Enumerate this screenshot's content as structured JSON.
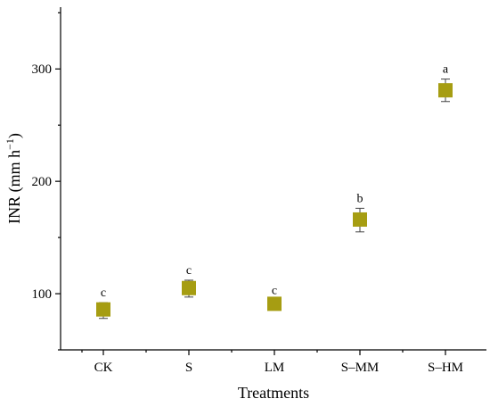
{
  "chart_data": {
    "type": "scatter",
    "xlabel": "Treatments",
    "ylabel_main": "INR (mm h",
    "ylabel_sup": "−1",
    "ylabel_close": ")",
    "ylim": [
      50,
      355
    ],
    "yticks": [
      100,
      200,
      300
    ],
    "grid": false,
    "legend": "none",
    "marker_color": "#a69d12",
    "marker_shape": "square",
    "categories": [
      "CK",
      "S",
      "LM",
      "S–MM",
      "S–HM"
    ],
    "points": [
      {
        "category": "CK",
        "value": 86,
        "err_low": 8,
        "err_high": 6,
        "label": "c"
      },
      {
        "category": "S",
        "value": 105,
        "err_low": 8,
        "err_high": 7,
        "label": "c"
      },
      {
        "category": "LM",
        "value": 91,
        "err_low": 4,
        "err_high": 3,
        "label": "c"
      },
      {
        "category": "S–MM",
        "value": 166,
        "err_low": 11,
        "err_high": 10,
        "label": "b"
      },
      {
        "category": "S–HM",
        "value": 281,
        "err_low": 10,
        "err_high": 10,
        "label": "a"
      }
    ]
  }
}
